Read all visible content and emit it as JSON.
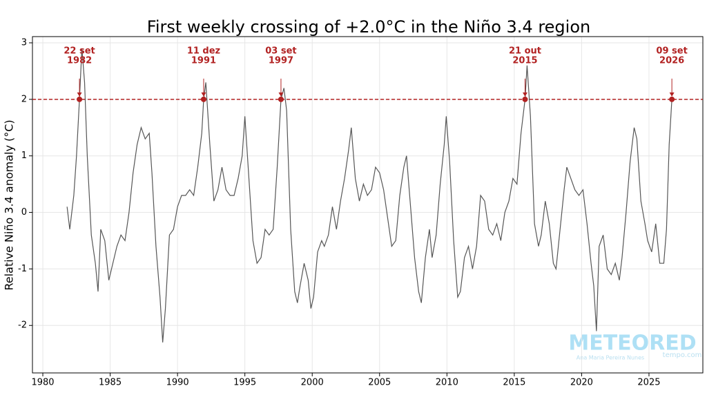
{
  "chart_data": {
    "type": "line",
    "title": "First weekly crossing of +2.0°C in the Niño 3.4 region",
    "y_label": "Relative Niño 3.4 anomaly (°C)",
    "xlim": [
      1979.23,
      2029.0
    ],
    "ylim": [
      -2.84,
      3.11
    ],
    "xticks": [
      1980,
      1985,
      1990,
      1995,
      2000,
      2005,
      2010,
      2015,
      2020,
      2025
    ],
    "yticks": [
      -2,
      -1,
      0,
      1,
      2,
      3
    ],
    "grid": true,
    "threshold": 2,
    "threshold_color": "#b22222",
    "series": [
      {
        "color": "#555555",
        "x": [
          1981.8,
          1982.0,
          1982.3,
          1982.5,
          1982.72,
          1982.9,
          1983.1,
          1983.3,
          1983.6,
          1983.9,
          1984.1,
          1984.3,
          1984.6,
          1984.9,
          1985.2,
          1985.5,
          1985.8,
          1986.1,
          1986.4,
          1986.7,
          1987.0,
          1987.3,
          1987.6,
          1987.9,
          1988.1,
          1988.4,
          1988.7,
          1988.9,
          1989.1,
          1989.4,
          1989.7,
          1990.0,
          1990.3,
          1990.6,
          1990.9,
          1991.2,
          1991.5,
          1991.8,
          1991.94,
          1992.1,
          1992.4,
          1992.7,
          1993.0,
          1993.3,
          1993.6,
          1993.9,
          1994.2,
          1994.5,
          1994.8,
          1995.0,
          1995.3,
          1995.6,
          1995.9,
          1996.2,
          1996.5,
          1996.8,
          1997.1,
          1997.4,
          1997.68,
          1997.9,
          1998.1,
          1998.4,
          1998.7,
          1998.9,
          1999.1,
          1999.4,
          1999.7,
          1999.9,
          2000.1,
          2000.4,
          2000.7,
          2000.9,
          2001.2,
          2001.5,
          2001.8,
          2002.1,
          2002.4,
          2002.7,
          2002.9,
          2003.2,
          2003.5,
          2003.8,
          2004.1,
          2004.4,
          2004.7,
          2005.0,
          2005.3,
          2005.6,
          2005.9,
          2006.2,
          2006.5,
          2006.8,
          2007.0,
          2007.3,
          2007.6,
          2007.9,
          2008.1,
          2008.4,
          2008.7,
          2008.9,
          2009.2,
          2009.5,
          2009.8,
          2009.95,
          2010.2,
          2010.5,
          2010.8,
          2011.0,
          2011.3,
          2011.6,
          2011.9,
          2012.2,
          2012.5,
          2012.8,
          2013.1,
          2013.4,
          2013.7,
          2014.0,
          2014.3,
          2014.6,
          2014.9,
          2015.2,
          2015.5,
          2015.8,
          2015.95,
          2016.2,
          2016.5,
          2016.8,
          2017.0,
          2017.3,
          2017.6,
          2017.9,
          2018.1,
          2018.4,
          2018.7,
          2018.9,
          2019.2,
          2019.5,
          2019.8,
          2020.1,
          2020.4,
          2020.7,
          2020.9,
          2021.1,
          2021.3,
          2021.6,
          2021.9,
          2022.2,
          2022.5,
          2022.8,
          2023.0,
          2023.3,
          2023.6,
          2023.9,
          2024.1,
          2024.4,
          2024.7,
          2024.9,
          2025.2,
          2025.5,
          2025.8,
          2026.1,
          2026.3,
          2026.5,
          2026.7
        ],
        "values": [
          0.1,
          -0.3,
          0.3,
          1.0,
          2.0,
          2.9,
          2.3,
          1.0,
          -0.4,
          -0.9,
          -1.4,
          -0.3,
          -0.5,
          -1.2,
          -0.9,
          -0.6,
          -0.4,
          -0.5,
          0.0,
          0.7,
          1.2,
          1.5,
          1.3,
          1.4,
          0.7,
          -0.6,
          -1.5,
          -2.3,
          -1.7,
          -0.4,
          -0.3,
          0.1,
          0.3,
          0.3,
          0.4,
          0.3,
          0.8,
          1.4,
          2.0,
          2.3,
          1.2,
          0.2,
          0.4,
          0.8,
          0.4,
          0.3,
          0.3,
          0.6,
          1.0,
          1.7,
          0.6,
          -0.5,
          -0.9,
          -0.8,
          -0.3,
          -0.4,
          -0.3,
          0.8,
          2.0,
          2.2,
          1.8,
          -0.3,
          -1.4,
          -1.6,
          -1.3,
          -0.9,
          -1.2,
          -1.7,
          -1.5,
          -0.7,
          -0.5,
          -0.6,
          -0.4,
          0.1,
          -0.3,
          0.2,
          0.6,
          1.1,
          1.5,
          0.6,
          0.2,
          0.5,
          0.3,
          0.4,
          0.8,
          0.7,
          0.4,
          -0.1,
          -0.6,
          -0.5,
          0.3,
          0.8,
          1.0,
          0.1,
          -0.8,
          -1.4,
          -1.6,
          -0.8,
          -0.3,
          -0.8,
          -0.4,
          0.5,
          1.2,
          1.7,
          0.9,
          -0.5,
          -1.5,
          -1.4,
          -0.8,
          -0.6,
          -1.0,
          -0.6,
          0.3,
          0.2,
          -0.3,
          -0.4,
          -0.2,
          -0.5,
          0.0,
          0.2,
          0.6,
          0.5,
          1.4,
          2.0,
          2.6,
          1.7,
          -0.2,
          -0.6,
          -0.4,
          0.2,
          -0.2,
          -0.9,
          -1.0,
          -0.3,
          0.4,
          0.8,
          0.6,
          0.4,
          0.3,
          0.4,
          -0.2,
          -0.9,
          -1.3,
          -2.1,
          -0.6,
          -0.4,
          -1.0,
          -1.1,
          -0.9,
          -1.2,
          -0.8,
          0.0,
          0.9,
          1.5,
          1.3,
          0.2,
          -0.2,
          -0.5,
          -0.7,
          -0.2,
          -0.9,
          -0.9,
          -0.3,
          1.2,
          2.0
        ]
      }
    ],
    "annotations": [
      {
        "x": 1982.72,
        "y": 2,
        "date": "22 set",
        "year": "1982"
      },
      {
        "x": 1991.94,
        "y": 2,
        "date": "11 dez",
        "year": "1991"
      },
      {
        "x": 1997.68,
        "y": 2,
        "date": "03 set",
        "year": "1997"
      },
      {
        "x": 2015.8,
        "y": 2,
        "date": "21 out",
        "year": "2015"
      },
      {
        "x": 2026.7,
        "y": 2,
        "date": "09 set",
        "year": "2026"
      }
    ],
    "watermark": {
      "brand": "METEORED",
      "author": "Ana Maria Pereira Nunes",
      "site": "tempo.com"
    }
  }
}
